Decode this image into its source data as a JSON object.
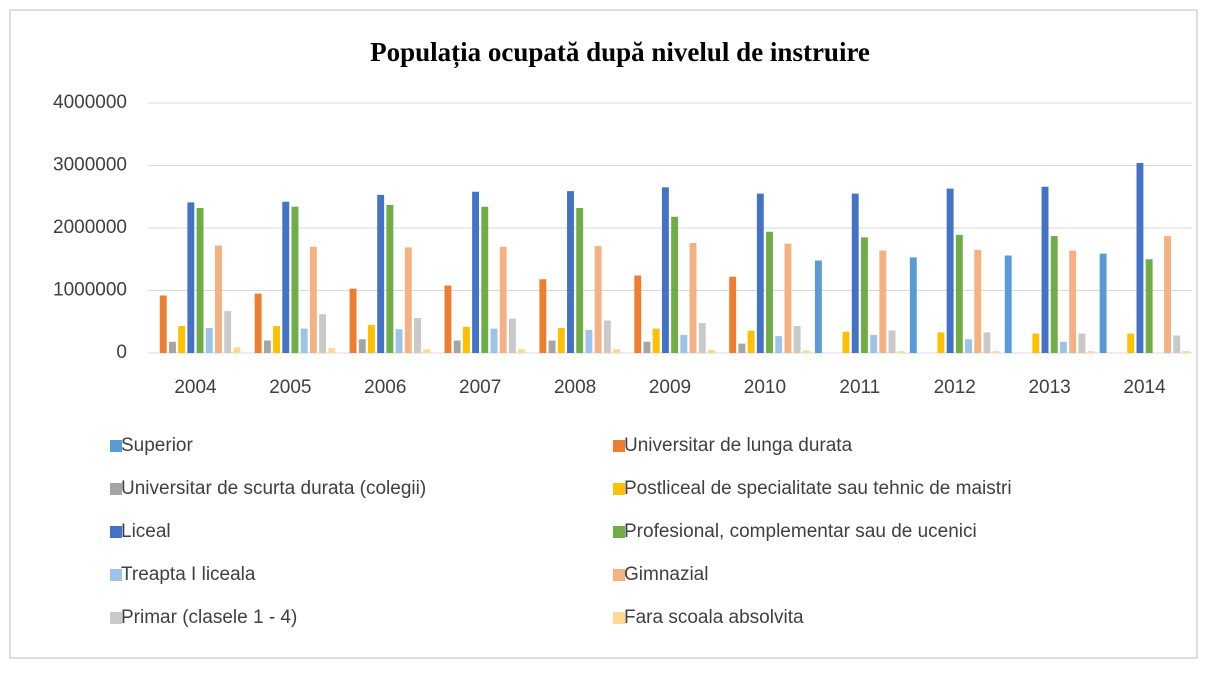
{
  "chart_data": {
    "type": "bar",
    "title": "Populația ocupată după nivelul de instruire",
    "categories": [
      "2004",
      "2005",
      "2006",
      "2007",
      "2008",
      "2009",
      "2010",
      "2011",
      "2012",
      "2013",
      "2014"
    ],
    "series": [
      {
        "name": "Superior",
        "color": "#5b9bd5",
        "values": [
          null,
          null,
          null,
          null,
          null,
          null,
          null,
          1480000,
          1530000,
          1560000,
          1590000
        ]
      },
      {
        "name": "Universitar de lunga durata",
        "color": "#ed7d31",
        "values": [
          920000,
          950000,
          1030000,
          1080000,
          1180000,
          1240000,
          1220000,
          null,
          null,
          null,
          null
        ]
      },
      {
        "name": "Universitar de scurta durata (colegii)",
        "color": "#a5a5a5",
        "values": [
          180000,
          200000,
          220000,
          200000,
          200000,
          180000,
          150000,
          null,
          null,
          null,
          null
        ]
      },
      {
        "name": "Postliceal de specialitate sau tehnic de maistri",
        "color": "#ffc000",
        "values": [
          430000,
          430000,
          450000,
          420000,
          400000,
          390000,
          360000,
          340000,
          330000,
          310000,
          310000
        ]
      },
      {
        "name": "Liceal",
        "color": "#4472c4",
        "values": [
          2410000,
          2420000,
          2530000,
          2580000,
          2590000,
          2650000,
          2550000,
          2550000,
          2630000,
          2660000,
          3040000
        ]
      },
      {
        "name": "Profesional, complementar sau de ucenici",
        "color": "#70ad47",
        "values": [
          2320000,
          2340000,
          2370000,
          2340000,
          2320000,
          2180000,
          1940000,
          1850000,
          1890000,
          1870000,
          1500000
        ]
      },
      {
        "name": "Treapta I liceala",
        "color": "#9dc3e6",
        "values": [
          400000,
          390000,
          380000,
          390000,
          370000,
          290000,
          270000,
          290000,
          220000,
          180000,
          null
        ]
      },
      {
        "name": "Gimnazial",
        "color": "#f4b183",
        "values": [
          1720000,
          1700000,
          1690000,
          1700000,
          1710000,
          1760000,
          1750000,
          1640000,
          1650000,
          1640000,
          1870000
        ]
      },
      {
        "name": "Primar (clasele 1 - 4)",
        "color": "#c9c9c9",
        "values": [
          670000,
          620000,
          560000,
          550000,
          520000,
          480000,
          430000,
          360000,
          330000,
          310000,
          280000
        ]
      },
      {
        "name": "Fara scoala absolvita",
        "color": "#ffd891",
        "values": [
          90000,
          80000,
          60000,
          60000,
          60000,
          50000,
          40000,
          30000,
          30000,
          30000,
          30000
        ]
      }
    ],
    "ylim": [
      0,
      4000000
    ],
    "yticks": [
      0,
      1000000,
      2000000,
      3000000,
      4000000
    ],
    "grid": true
  }
}
